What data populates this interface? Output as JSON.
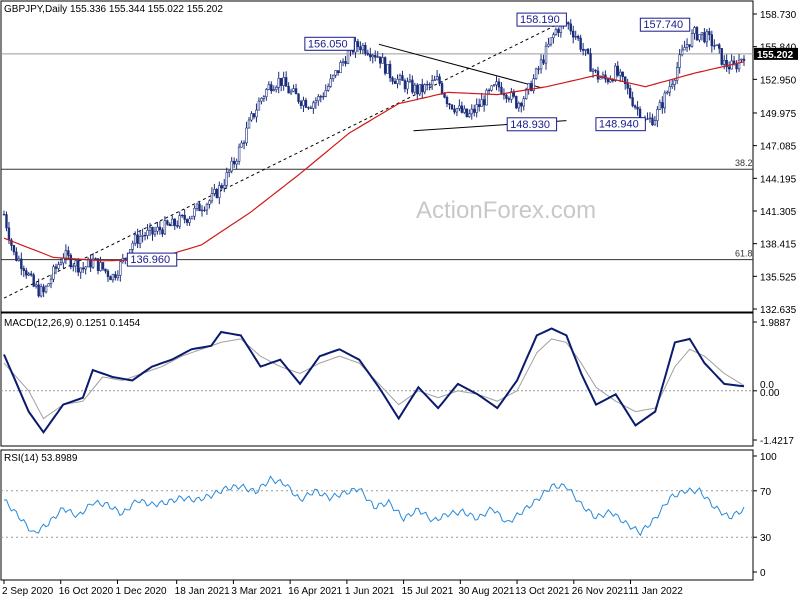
{
  "title": "GBPJPY,Daily  155.336 155.344 155.022 155.202",
  "watermark": "ActionForex.com",
  "last_price_label": "155.202",
  "price_ticks": [
    "158.730",
    "155.840",
    "152.950",
    "149.975",
    "147.085",
    "144.195",
    "141.305",
    "138.415",
    "135.525",
    "132.635"
  ],
  "level_labels": [
    "156.050",
    "158.190",
    "157.740",
    "148.930",
    "148.940",
    "136.960"
  ],
  "fib_labels": [
    "38.2",
    "61.8"
  ],
  "macd": {
    "title": "MACD(12,26,9) 0.1251 0.1454",
    "ticks": [
      "1.9887",
      "0.0",
      "0.00",
      "-1.4217"
    ]
  },
  "rsi": {
    "title": "RSI(14) 53.8989",
    "ticks": [
      "100",
      "70",
      "30",
      "0"
    ]
  },
  "date_labels": [
    "2 Sep 2020",
    "16 Oct 2020",
    "1 Dec 2020",
    "18 Jan 2021",
    "3 Mar 2021",
    "16 Apr 2021",
    "1 Jun 2021",
    "15 Jul 2021",
    "30 Aug 2021",
    "13 Oct 2021",
    "26 Nov 2021",
    "11 Jan 2022"
  ],
  "colors": {
    "candles": "#1b2d7a",
    "ma": "#d01818",
    "macd": "#0a1a6e",
    "signal": "#a0a0a0",
    "rsi": "#2a8ad8",
    "box": "#1a1a8c"
  },
  "chart_data": [
    {
      "type": "candlestick",
      "title": "GBPJPY,Daily",
      "ohlc_last": {
        "open": 155.336,
        "high": 155.344,
        "low": 155.022,
        "close": 155.202
      },
      "ylim": [
        132.635,
        158.73
      ],
      "x_labels": [
        "2 Sep 2020",
        "16 Oct 2020",
        "1 Dec 2020",
        "18 Jan 2021",
        "3 Mar 2021",
        "16 Apr 2021",
        "1 Jun 2021",
        "15 Jul 2021",
        "30 Aug 2021",
        "13 Oct 2021",
        "26 Nov 2021",
        "11 Jan 2022"
      ],
      "close_path": [
        [
          0,
          141.0
        ],
        [
          2,
          137.5
        ],
        [
          4,
          136.5
        ],
        [
          6,
          134.6
        ],
        [
          8,
          134.0
        ],
        [
          10,
          135.8
        ],
        [
          12,
          137.4
        ],
        [
          14,
          136.8
        ],
        [
          16,
          136.2
        ],
        [
          18,
          136.9
        ],
        [
          20,
          136.2
        ],
        [
          22,
          135.5
        ],
        [
          24,
          136.8
        ],
        [
          26,
          138.5
        ],
        [
          28,
          139.2
        ],
        [
          30,
          139.3
        ],
        [
          32,
          139.8
        ],
        [
          34,
          140.0
        ],
        [
          36,
          140.5
        ],
        [
          38,
          141.0
        ],
        [
          40,
          141.8
        ],
        [
          42,
          142.3
        ],
        [
          44,
          143.5
        ],
        [
          46,
          145.0
        ],
        [
          48,
          147.0
        ],
        [
          50,
          149.3
        ],
        [
          52,
          151.2
        ],
        [
          54,
          152.5
        ],
        [
          56,
          152.9
        ],
        [
          58,
          151.8
        ],
        [
          60,
          151.2
        ],
        [
          62,
          150.8
        ],
        [
          64,
          151.3
        ],
        [
          66,
          152.5
        ],
        [
          68,
          154.0
        ],
        [
          70,
          155.5
        ],
        [
          72,
          156.0
        ],
        [
          74,
          155.6
        ],
        [
          76,
          155.0
        ],
        [
          78,
          153.5
        ],
        [
          80,
          152.8
        ],
        [
          82,
          152.4
        ],
        [
          84,
          151.9
        ],
        [
          86,
          152.3
        ],
        [
          88,
          152.9
        ],
        [
          90,
          151.0
        ],
        [
          92,
          150.3
        ],
        [
          94,
          149.6
        ],
        [
          96,
          150.5
        ],
        [
          98,
          151.5
        ],
        [
          100,
          152.4
        ],
        [
          102,
          151.8
        ],
        [
          104,
          150.8
        ],
        [
          106,
          151.7
        ],
        [
          108,
          153.5
        ],
        [
          110,
          155.5
        ],
        [
          112,
          157.4
        ],
        [
          114,
          158.0
        ],
        [
          116,
          156.8
        ],
        [
          118,
          155.0
        ],
        [
          120,
          153.3
        ],
        [
          122,
          152.9
        ],
        [
          124,
          153.6
        ],
        [
          126,
          152.3
        ],
        [
          128,
          150.6
        ],
        [
          130,
          149.2
        ],
        [
          132,
          149.6
        ],
        [
          134,
          151.4
        ],
        [
          136,
          153.5
        ],
        [
          138,
          155.8
        ],
        [
          140,
          157.0
        ],
        [
          142,
          156.8
        ],
        [
          144,
          156.0
        ],
        [
          146,
          154.3
        ],
        [
          148,
          154.0
        ],
        [
          150,
          155.202
        ]
      ],
      "moving_average": [
        [
          0,
          138.9
        ],
        [
          10,
          137.2
        ],
        [
          20,
          136.9
        ],
        [
          30,
          137.0
        ],
        [
          40,
          138.3
        ],
        [
          50,
          141.2
        ],
        [
          60,
          144.6
        ],
        [
          70,
          148.2
        ],
        [
          80,
          150.8
        ],
        [
          90,
          151.8
        ],
        [
          100,
          151.6
        ],
        [
          110,
          152.3
        ],
        [
          120,
          153.3
        ],
        [
          130,
          152.3
        ],
        [
          140,
          153.5
        ],
        [
          150,
          154.5
        ]
      ],
      "levels": [
        156.05,
        158.19,
        157.74,
        148.93,
        148.94,
        136.96
      ],
      "fib_lines": [
        {
          "label": "38.2",
          "value": 145.0
        },
        {
          "label": "61.8",
          "value": 137.0
        }
      ],
      "hline": 155.202
    },
    {
      "type": "line",
      "title": "MACD(12,26,9)",
      "values_last": {
        "macd": 0.1251,
        "signal": 0.1454
      },
      "ylim": [
        -1.4217,
        1.9887
      ],
      "macd_path": [
        [
          0,
          1.05
        ],
        [
          5,
          -0.6
        ],
        [
          8,
          -1.2
        ],
        [
          12,
          -0.4
        ],
        [
          16,
          -0.2
        ],
        [
          18,
          0.6
        ],
        [
          22,
          0.4
        ],
        [
          26,
          0.3
        ],
        [
          30,
          0.7
        ],
        [
          34,
          0.9
        ],
        [
          38,
          1.2
        ],
        [
          42,
          1.3
        ],
        [
          44,
          1.7
        ],
        [
          48,
          1.6
        ],
        [
          52,
          0.7
        ],
        [
          56,
          0.9
        ],
        [
          60,
          0.2
        ],
        [
          64,
          1.0
        ],
        [
          68,
          1.2
        ],
        [
          72,
          0.9
        ],
        [
          76,
          0.1
        ],
        [
          80,
          -0.8
        ],
        [
          84,
          0.1
        ],
        [
          88,
          -0.5
        ],
        [
          92,
          0.2
        ],
        [
          96,
          -0.1
        ],
        [
          100,
          -0.5
        ],
        [
          104,
          0.3
        ],
        [
          108,
          1.6
        ],
        [
          111,
          1.8
        ],
        [
          114,
          1.6
        ],
        [
          117,
          0.5
        ],
        [
          120,
          -0.4
        ],
        [
          124,
          -0.1
        ],
        [
          128,
          -1.0
        ],
        [
          132,
          -0.6
        ],
        [
          136,
          1.4
        ],
        [
          139,
          1.5
        ],
        [
          142,
          0.8
        ],
        [
          146,
          0.2
        ],
        [
          150,
          0.13
        ]
      ],
      "signal_path": [
        [
          0,
          0.8
        ],
        [
          5,
          0.0
        ],
        [
          8,
          -0.8
        ],
        [
          12,
          -0.4
        ],
        [
          16,
          -0.3
        ],
        [
          20,
          0.4
        ],
        [
          24,
          0.3
        ],
        [
          28,
          0.5
        ],
        [
          32,
          0.7
        ],
        [
          36,
          1.0
        ],
        [
          40,
          1.2
        ],
        [
          44,
          1.4
        ],
        [
          48,
          1.5
        ],
        [
          52,
          1.0
        ],
        [
          56,
          0.7
        ],
        [
          60,
          0.5
        ],
        [
          64,
          0.8
        ],
        [
          68,
          1.0
        ],
        [
          72,
          0.8
        ],
        [
          76,
          0.2
        ],
        [
          80,
          -0.4
        ],
        [
          84,
          0.0
        ],
        [
          88,
          -0.2
        ],
        [
          92,
          0.0
        ],
        [
          96,
          -0.1
        ],
        [
          100,
          -0.3
        ],
        [
          104,
          0.0
        ],
        [
          108,
          1.1
        ],
        [
          111,
          1.5
        ],
        [
          114,
          1.4
        ],
        [
          117,
          0.8
        ],
        [
          120,
          0.1
        ],
        [
          124,
          -0.3
        ],
        [
          128,
          -0.6
        ],
        [
          132,
          -0.5
        ],
        [
          136,
          0.7
        ],
        [
          139,
          1.2
        ],
        [
          142,
          1.0
        ],
        [
          146,
          0.5
        ],
        [
          150,
          0.15
        ]
      ]
    },
    {
      "type": "line",
      "title": "RSI(14)",
      "value_last": 53.8989,
      "ylim": [
        0,
        100
      ],
      "reference_lines": [
        70,
        30
      ],
      "rsi_path": [
        [
          0,
          62
        ],
        [
          3,
          48
        ],
        [
          6,
          33
        ],
        [
          9,
          42
        ],
        [
          12,
          55
        ],
        [
          15,
          48
        ],
        [
          18,
          60
        ],
        [
          21,
          58
        ],
        [
          24,
          50
        ],
        [
          27,
          62
        ],
        [
          30,
          58
        ],
        [
          33,
          60
        ],
        [
          36,
          64
        ],
        [
          39,
          62
        ],
        [
          42,
          66
        ],
        [
          45,
          72
        ],
        [
          48,
          74
        ],
        [
          51,
          69
        ],
        [
          54,
          80
        ],
        [
          57,
          76
        ],
        [
          60,
          62
        ],
        [
          63,
          70
        ],
        [
          66,
          64
        ],
        [
          69,
          68
        ],
        [
          72,
          72
        ],
        [
          75,
          56
        ],
        [
          78,
          60
        ],
        [
          81,
          46
        ],
        [
          84,
          54
        ],
        [
          87,
          44
        ],
        [
          90,
          50
        ],
        [
          93,
          52
        ],
        [
          96,
          46
        ],
        [
          99,
          55
        ],
        [
          102,
          42
        ],
        [
          105,
          52
        ],
        [
          108,
          62
        ],
        [
          111,
          74
        ],
        [
          114,
          74
        ],
        [
          117,
          58
        ],
        [
          120,
          47
        ],
        [
          123,
          52
        ],
        [
          126,
          42
        ],
        [
          129,
          34
        ],
        [
          132,
          46
        ],
        [
          135,
          64
        ],
        [
          138,
          70
        ],
        [
          141,
          70
        ],
        [
          144,
          56
        ],
        [
          147,
          47
        ],
        [
          150,
          53.9
        ]
      ]
    }
  ]
}
